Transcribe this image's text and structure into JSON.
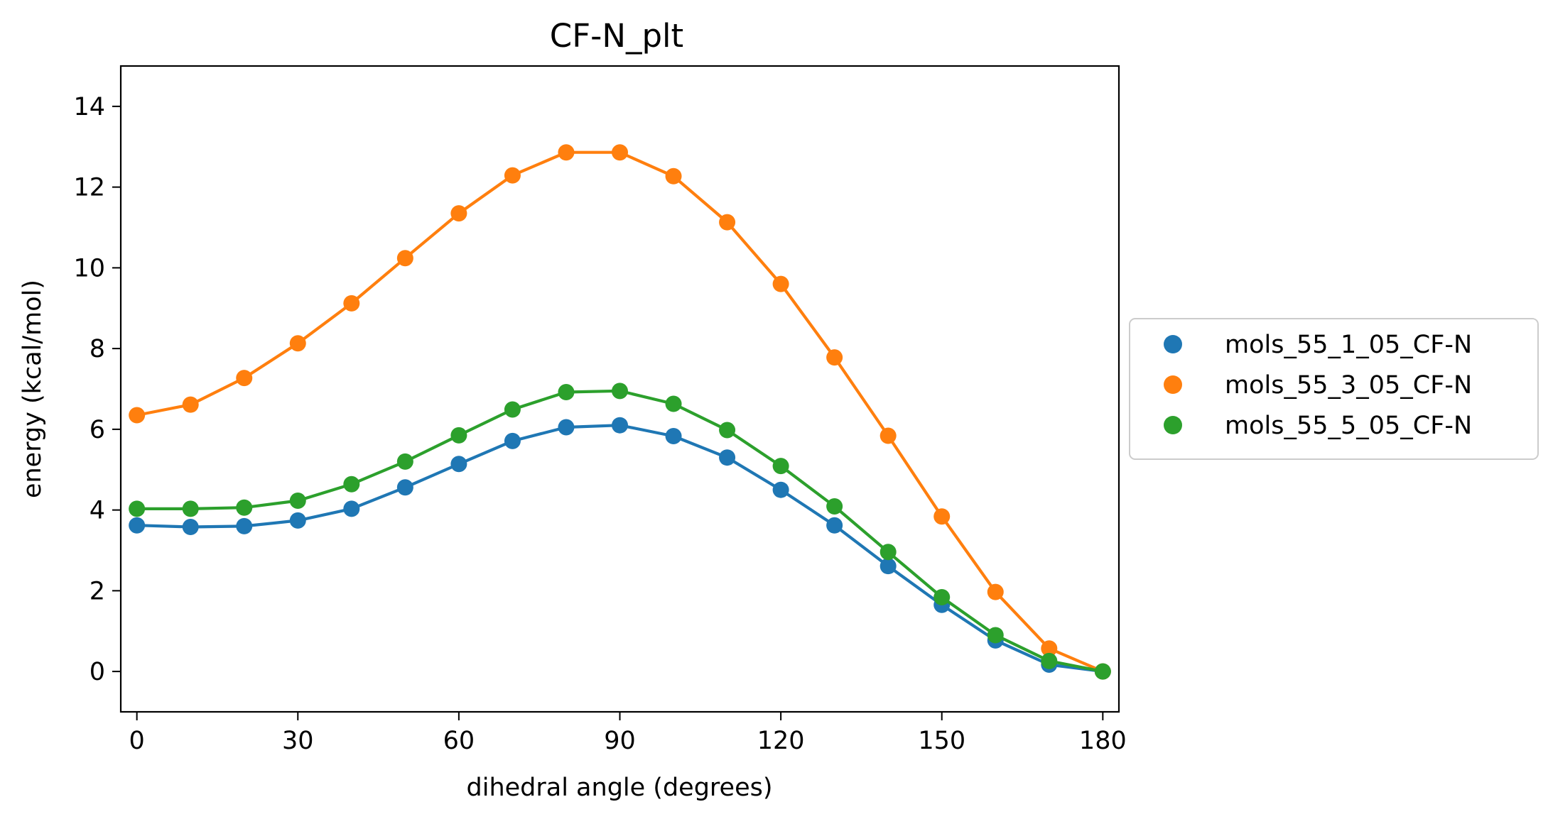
{
  "chart_data": {
    "type": "line",
    "title": "CF-N_plt",
    "xlabel": "dihedral angle (degrees)",
    "ylabel": "energy (kcal/mol)",
    "xlim": [
      -3,
      183
    ],
    "ylim": [
      -1,
      15
    ],
    "xticks": [
      0,
      30,
      60,
      90,
      120,
      150,
      180
    ],
    "yticks": [
      0,
      2,
      4,
      6,
      8,
      10,
      12,
      14
    ],
    "x": [
      0,
      10,
      20,
      30,
      40,
      50,
      60,
      70,
      80,
      90,
      100,
      110,
      120,
      130,
      140,
      150,
      160,
      170,
      180
    ],
    "series": [
      {
        "name": "mols_55_1_05_CF-N",
        "color": "#1f77b4",
        "values": [
          3.62,
          3.58,
          3.6,
          3.74,
          4.03,
          4.56,
          5.14,
          5.71,
          6.05,
          6.1,
          5.83,
          5.3,
          4.5,
          3.62,
          2.61,
          1.65,
          0.77,
          0.17,
          0.0
        ]
      },
      {
        "name": "mols_55_3_05_CF-N",
        "color": "#ff7f0e",
        "values": [
          6.35,
          6.61,
          7.27,
          8.13,
          9.12,
          10.24,
          11.35,
          12.29,
          12.86,
          12.86,
          12.27,
          11.13,
          9.6,
          7.78,
          5.84,
          3.84,
          1.97,
          0.57,
          0.0
        ]
      },
      {
        "name": "mols_55_5_05_CF-N",
        "color": "#2ca02c",
        "values": [
          4.03,
          4.03,
          4.06,
          4.23,
          4.64,
          5.2,
          5.85,
          6.49,
          6.92,
          6.95,
          6.63,
          5.98,
          5.09,
          4.09,
          2.96,
          1.84,
          0.9,
          0.26,
          0.0
        ]
      }
    ],
    "legend_position": "center-right outside",
    "grid": false
  }
}
